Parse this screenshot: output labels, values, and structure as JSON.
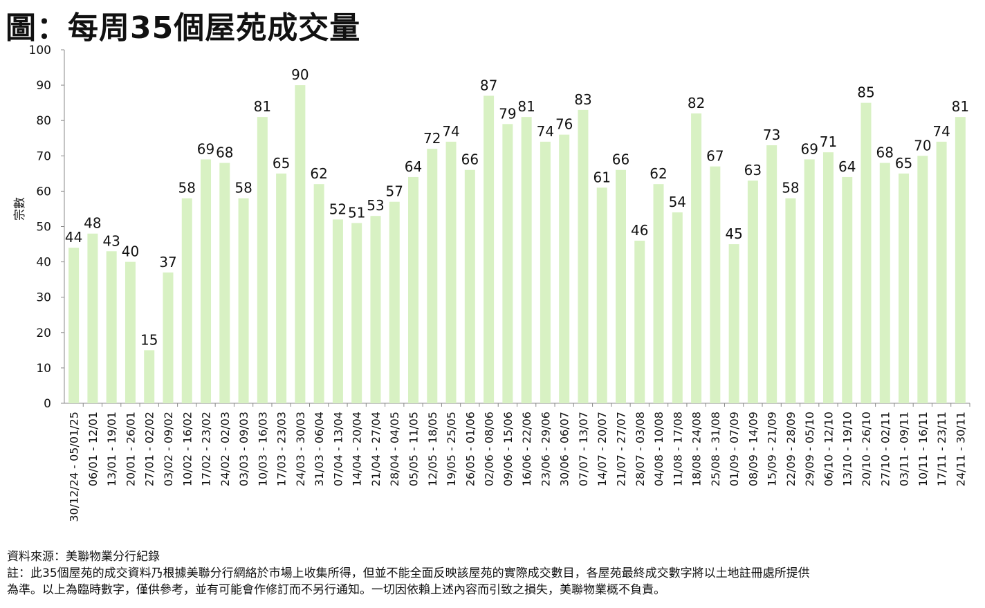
{
  "title": "圖：每周35個屋苑成交量",
  "footer": {
    "source": "資料來源：美聯物業分行紀錄",
    "note_line1": "註：此35個屋苑的成交資料乃根據美聯分行網絡於市場上收集所得，但並不能全面反映該屋苑的實際成交數目，各屋苑最終成交數字將以土地註冊處所提供",
    "note_line2": "為準。以上為臨時數字，僅供參考，並有可能會作修訂而不另行通知。一切因依賴上述內容而引致之損失，美聯物業概不負責。"
  },
  "chart_data": {
    "type": "bar",
    "title": "圖：每周35個屋苑成交量",
    "xlabel": "",
    "ylabel": "宗數",
    "ylim": [
      0,
      100
    ],
    "yticks": [
      0,
      10,
      20,
      30,
      40,
      50,
      60,
      70,
      80,
      90,
      100
    ],
    "bar_color": "#d8f1c3",
    "categories": [
      "30/12/24 - 05/01/25",
      "06/01 - 12/01",
      "13/01 - 19/01",
      "20/01 - 26/01",
      "27/01 - 02/02",
      "03/02 - 09/02",
      "10/02 - 16/02",
      "17/02 - 23/02",
      "24/02 - 02/03",
      "03/03 - 09/03",
      "10/03 - 16/03",
      "17/03 - 23/03",
      "24/03 - 30/03",
      "31/03 - 06/04",
      "07/04 - 13/04",
      "14/04 - 20/04",
      "21/04 - 27/04",
      "28/04 - 04/05",
      "05/05 - 11/05",
      "12/05 - 18/05",
      "19/05 - 25/05",
      "26/05 - 01/06",
      "02/06 - 08/06",
      "09/06 - 15/06",
      "16/06 - 22/06",
      "23/06 - 29/06",
      "30/06 - 06/07",
      "07/07 - 13/07",
      "14/07 - 20/07",
      "21/07 - 27/07",
      "28/07 - 03/08",
      "04/08 - 10/08",
      "11/08 - 17/08",
      "18/08 - 24/08",
      "25/08 - 31/08",
      "01/09 - 07/09",
      "08/09 - 14/09",
      "15/09 - 21/09",
      "22/09 - 28/09",
      "29/09 - 05/10",
      "06/10 - 12/10",
      "13/10 - 19/10",
      "20/10 - 26/10",
      "27/10 - 02/11",
      "03/11 - 09/11",
      "10/11 - 16/11",
      "17/11 - 23/11",
      "24/11 - 30/11"
    ],
    "values": [
      44,
      48,
      43,
      40,
      15,
      37,
      58,
      69,
      68,
      58,
      81,
      65,
      90,
      62,
      52,
      51,
      53,
      57,
      64,
      72,
      74,
      66,
      87,
      79,
      81,
      74,
      76,
      83,
      61,
      66,
      46,
      62,
      54,
      82,
      67,
      45,
      63,
      73,
      58,
      69,
      71,
      64,
      85,
      68,
      65,
      70,
      74,
      81
    ],
    "grid": false,
    "legend": "none"
  }
}
